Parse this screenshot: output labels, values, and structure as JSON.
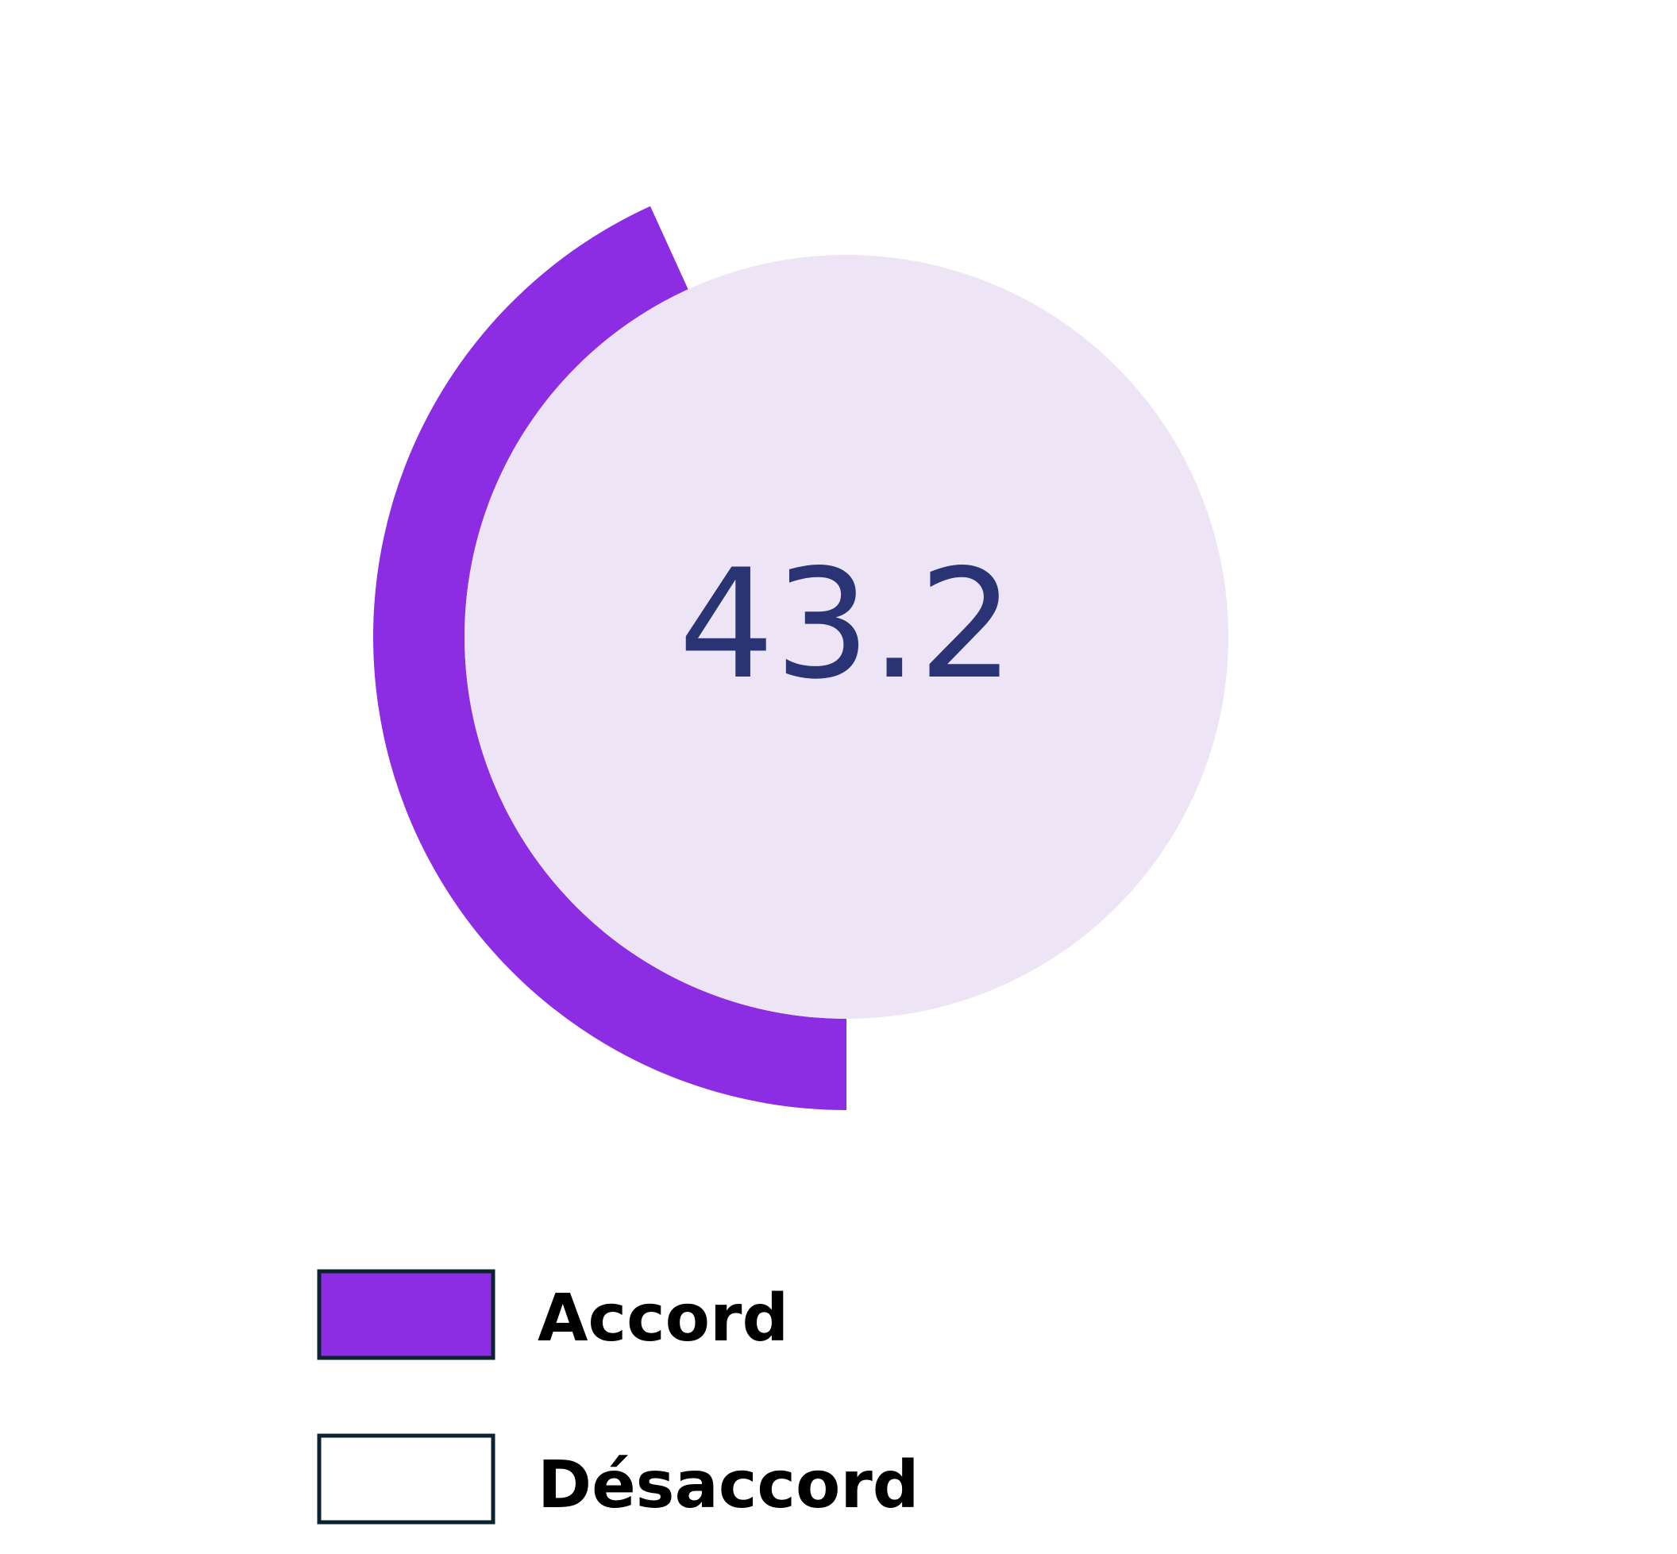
{
  "chart_data": {
    "type": "pie",
    "categories": [
      "Accord",
      "Désaccord"
    ],
    "values": [
      43.2,
      56.8
    ],
    "center_label": "43.2",
    "colors": {
      "accord": "#8c2de3",
      "desaccord": "#ffffff",
      "inner_disc": "#ede4f5",
      "center_text": "#2a3374",
      "legend_border": "#0d2230"
    },
    "legend": {
      "placement": "bottom-left",
      "items": [
        {
          "label": "Accord",
          "color": "#8c2de3"
        },
        {
          "label": "Désaccord",
          "color": "#ffffff"
        }
      ]
    }
  }
}
